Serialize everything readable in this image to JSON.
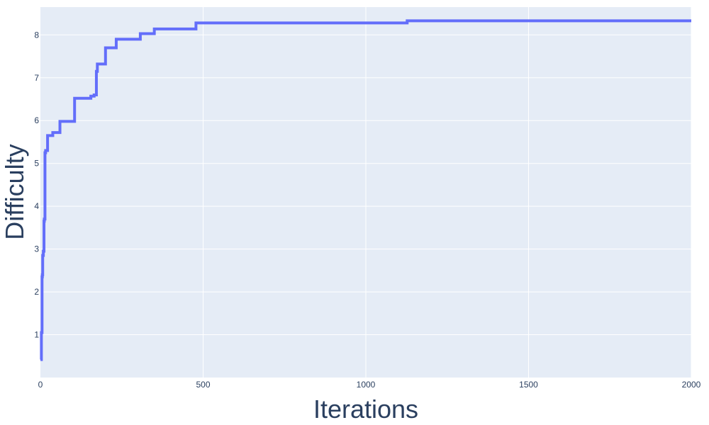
{
  "chart_data": {
    "type": "line",
    "title": "",
    "xlabel": "Iterations",
    "ylabel": "Difficulty",
    "xlim": [
      0,
      2000
    ],
    "ylim": [
      0,
      8.65
    ],
    "xticks": [
      0,
      500,
      1000,
      1500,
      2000
    ],
    "yticks": [
      1,
      2,
      3,
      4,
      5,
      6,
      7,
      8
    ],
    "grid": true,
    "legend": "none",
    "series": [
      {
        "color": "#636efa",
        "line_shape": "hv",
        "x": [
          0,
          3,
          5,
          6,
          7,
          9,
          11,
          12,
          14,
          16,
          22,
          30,
          38,
          60,
          105,
          155,
          165,
          172,
          175,
          200,
          233,
          307,
          350,
          478,
          1127,
          2000
        ],
        "y": [
          0.42,
          1.05,
          2.35,
          2.4,
          2.85,
          2.95,
          3.65,
          3.7,
          5.25,
          5.3,
          5.65,
          5.65,
          5.72,
          5.98,
          6.52,
          6.57,
          6.6,
          7.15,
          7.32,
          7.7,
          7.9,
          8.03,
          8.14,
          8.28,
          8.33,
          8.33
        ]
      }
    ]
  },
  "colors": {
    "plot_bg": "#e5ecf6",
    "grid": "#ffffff",
    "text": "#2a3f5f",
    "line": "#636efa"
  }
}
